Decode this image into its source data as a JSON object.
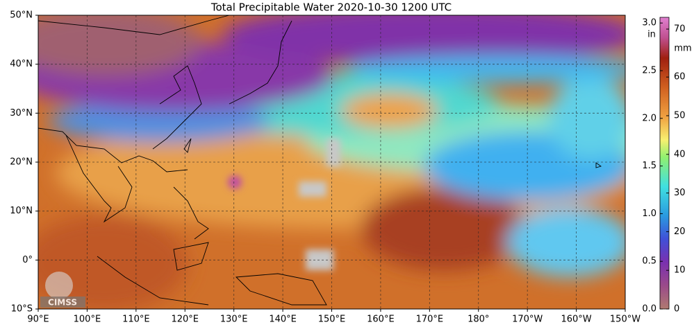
{
  "title": "Total Precipitable Water  2020-10-30 1200 UTC",
  "lat_labels": [
    "50°N",
    "40°N",
    "30°N",
    "20°N",
    "10°N",
    "0°",
    "10°S"
  ],
  "lon_labels": [
    "90°E",
    "100°E",
    "110°E",
    "120°E",
    "130°E",
    "140°E",
    "150°E",
    "160°E",
    "170°E",
    "180°",
    "170°W",
    "160°W",
    "150°W"
  ],
  "colorbar": {
    "in_label": "in",
    "mm_label": "mm",
    "in_ticks": [
      "0.0",
      "0.5",
      "1.0",
      "1.5",
      "2.0",
      "2.5",
      "3.0"
    ],
    "mm_ticks": [
      "0",
      "10",
      "20",
      "30",
      "40",
      "50",
      "60",
      "70"
    ]
  },
  "logo": "CIMSS"
}
